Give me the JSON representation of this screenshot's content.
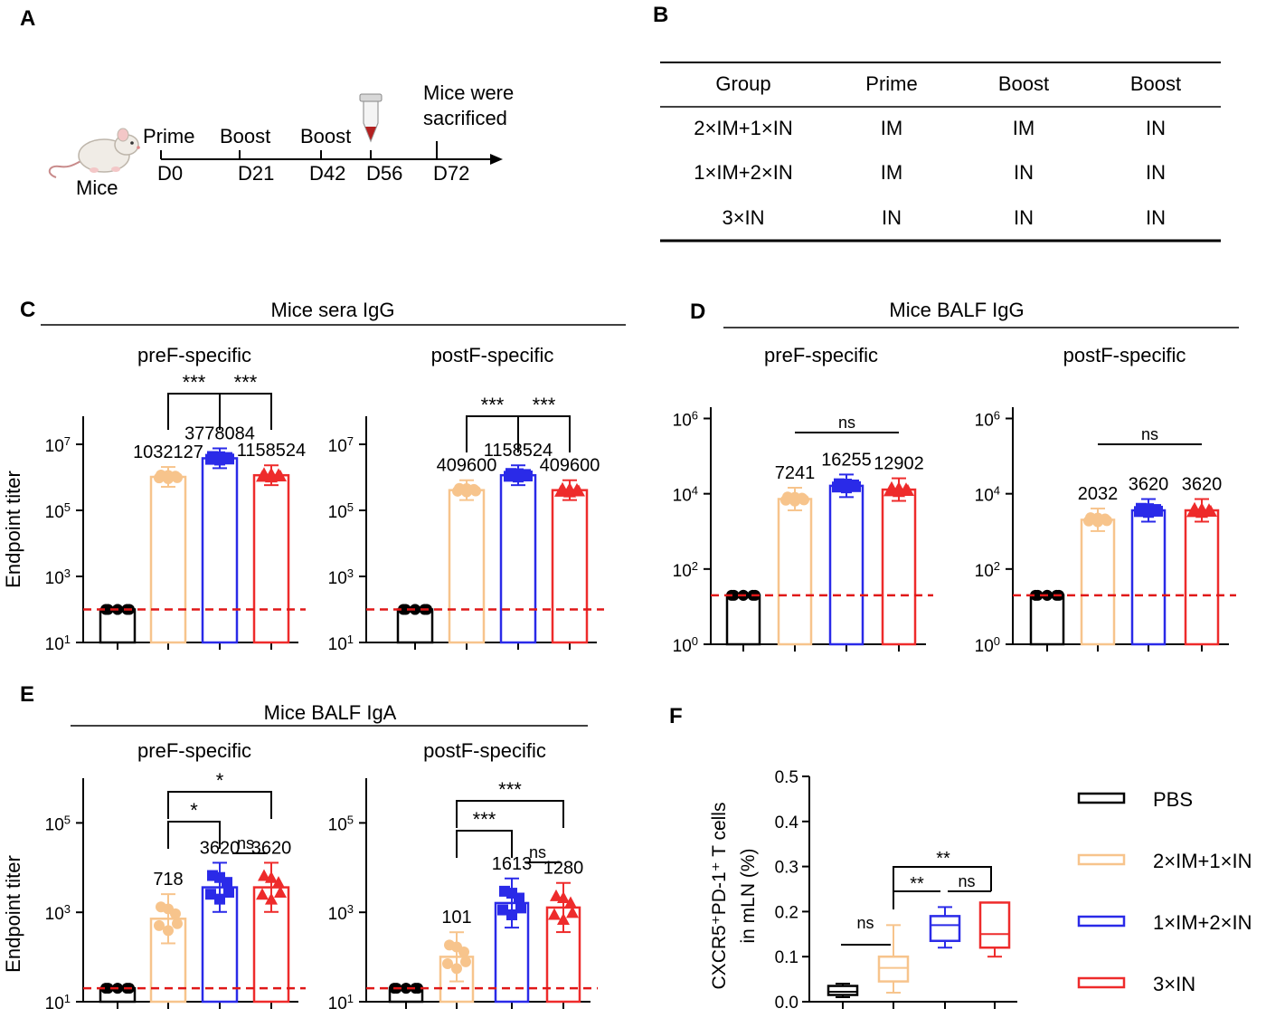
{
  "colors": {
    "PBS": "#000000",
    "2xIM1xIN": "#f7c48c",
    "1xIM2xIN": "#2a2ae8",
    "3xIN": "#ee2b2b",
    "threshold": "#e01818",
    "fill_2xIM1xIN": "#fbd9b1"
  },
  "panel_A": {
    "letter": "A",
    "mice_label": "Mice",
    "top_labels": [
      "Prime",
      "Boost",
      "Boost"
    ],
    "days": [
      "D0",
      "D21",
      "D42",
      "D56",
      "D72"
    ],
    "sacrifice_line1": "Mice were",
    "sacrifice_line2": "sacrificed",
    "tube_icon": "blood-tube-icon",
    "mouse_icon": "mouse-icon"
  },
  "panel_B": {
    "letter": "B",
    "headers": [
      "Group",
      "Prime",
      "Boost",
      "Boost"
    ],
    "rows": [
      [
        "2×IM+1×IN",
        "IM",
        "IM",
        "IN"
      ],
      [
        "1×IM+2×IN",
        "IM",
        "IN",
        "IN"
      ],
      [
        "3×IN",
        "IN",
        "IN",
        "IN"
      ]
    ]
  },
  "chart_data": [
    {
      "panel": "C",
      "type": "bar",
      "section_title": "Mice sera IgG",
      "title": "preF-specific",
      "ylabel": "Endpoint titer",
      "yscale": "log",
      "yticks": [
        "10^1",
        "10^3",
        "10^5",
        "10^7"
      ],
      "groups": [
        "PBS",
        "2×IM+1×IN",
        "1×IM+2×IN",
        "3×IN"
      ],
      "values": [
        100,
        1032127,
        3778084,
        1158524
      ],
      "data_labels": [
        "",
        "1032127",
        "3778084",
        "1158524"
      ],
      "threshold": 100,
      "significance": [
        {
          "from": 1,
          "to": 2,
          "label": "***"
        },
        {
          "from": 2,
          "to": 3,
          "label": "***"
        }
      ]
    },
    {
      "panel": "C",
      "type": "bar",
      "title": "postF-specific",
      "yscale": "log",
      "yticks": [
        "10^1",
        "10^3",
        "10^5",
        "10^7"
      ],
      "groups": [
        "PBS",
        "2×IM+1×IN",
        "1×IM+2×IN",
        "3×IN"
      ],
      "values": [
        100,
        409600,
        1158524,
        409600
      ],
      "data_labels": [
        "",
        "409600",
        "1158524",
        "409600"
      ],
      "threshold": 100,
      "significance": [
        {
          "from": 1,
          "to": 2,
          "label": "***"
        },
        {
          "from": 2,
          "to": 3,
          "label": "***"
        }
      ]
    },
    {
      "panel": "D",
      "type": "bar",
      "section_title": "Mice BALF IgG",
      "title": "preF-specific",
      "yscale": "log",
      "yticks": [
        "10^0",
        "10^2",
        "10^4",
        "10^6"
      ],
      "groups": [
        "PBS",
        "2×IM+1×IN",
        "1×IM+2×IN",
        "3×IN"
      ],
      "values": [
        20,
        7241,
        16255,
        12902
      ],
      "data_labels": [
        "",
        "7241",
        "16255",
        "12902"
      ],
      "threshold": 20,
      "significance": [
        {
          "from": 1,
          "to": 3,
          "label": "ns"
        }
      ]
    },
    {
      "panel": "D",
      "type": "bar",
      "title": "postF-specific",
      "yscale": "log",
      "yticks": [
        "10^0",
        "10^2",
        "10^4",
        "10^6"
      ],
      "groups": [
        "PBS",
        "2×IM+1×IN",
        "1×IM+2×IN",
        "3×IN"
      ],
      "values": [
        20,
        2032,
        3620,
        3620
      ],
      "data_labels": [
        "",
        "2032",
        "3620",
        "3620"
      ],
      "threshold": 20,
      "significance": [
        {
          "from": 1,
          "to": 3,
          "label": "ns"
        }
      ]
    },
    {
      "panel": "E",
      "type": "bar",
      "section_title": "Mice BALF IgA",
      "title": "preF-specific",
      "ylabel": "Endpoint titer",
      "yscale": "log",
      "yticks": [
        "10^1",
        "10^3",
        "10^5"
      ],
      "groups": [
        "PBS",
        "2×IM+1×IN",
        "1×IM+2×IN",
        "3×IN"
      ],
      "values": [
        20,
        718,
        3620,
        3620
      ],
      "data_labels": [
        "",
        "718",
        "3620",
        "3620"
      ],
      "threshold": 20,
      "significance": [
        {
          "from": 1,
          "to": 3,
          "label": "*"
        },
        {
          "from": 1,
          "to": 2,
          "label": "*"
        },
        {
          "from": 2,
          "to": 3,
          "label": "ns"
        }
      ]
    },
    {
      "panel": "E",
      "type": "bar",
      "title": "postF-specific",
      "yscale": "log",
      "yticks": [
        "10^1",
        "10^3",
        "10^5"
      ],
      "groups": [
        "PBS",
        "2×IM+1×IN",
        "1×IM+2×IN",
        "3×IN"
      ],
      "values": [
        20,
        101,
        1613,
        1280
      ],
      "data_labels": [
        "",
        "101",
        "1613",
        "1280"
      ],
      "threshold": 20,
      "significance": [
        {
          "from": 1,
          "to": 3,
          "label": "***"
        },
        {
          "from": 1,
          "to": 2,
          "label": "***"
        },
        {
          "from": 2,
          "to": 3,
          "label": "ns"
        }
      ]
    },
    {
      "panel": "F",
      "type": "box",
      "ylabel_line1": "CXCR5⁺PD-1⁺ T cells",
      "ylabel_line2": "in mLN (%)",
      "yticks": [
        "0.0",
        "0.1",
        "0.2",
        "0.3",
        "0.4",
        "0.5"
      ],
      "ylim": [
        0,
        0.5
      ],
      "groups": [
        "PBS",
        "2×IM+1×IN",
        "1×IM+2×IN",
        "3×IN"
      ],
      "boxes": [
        {
          "min": 0.01,
          "q1": 0.015,
          "median": 0.022,
          "q3": 0.035,
          "max": 0.04
        },
        {
          "min": 0.02,
          "q1": 0.045,
          "median": 0.075,
          "q3": 0.1,
          "max": 0.17
        },
        {
          "min": 0.12,
          "q1": 0.135,
          "median": 0.17,
          "q3": 0.19,
          "max": 0.21
        },
        {
          "min": 0.1,
          "q1": 0.12,
          "median": 0.15,
          "q3": 0.22,
          "max": 0.22
        }
      ],
      "significance": [
        {
          "from": 0,
          "to": 1,
          "label": "ns"
        },
        {
          "from": 1,
          "to": 3,
          "label": "**"
        },
        {
          "from": 1,
          "to": 2,
          "label": "**"
        },
        {
          "from": 2,
          "to": 3,
          "label": "ns"
        }
      ],
      "legend": [
        "PBS",
        "2×IM+1×IN",
        "1×IM+2×IN",
        "3×IN"
      ],
      "legend_placement": "right"
    }
  ]
}
